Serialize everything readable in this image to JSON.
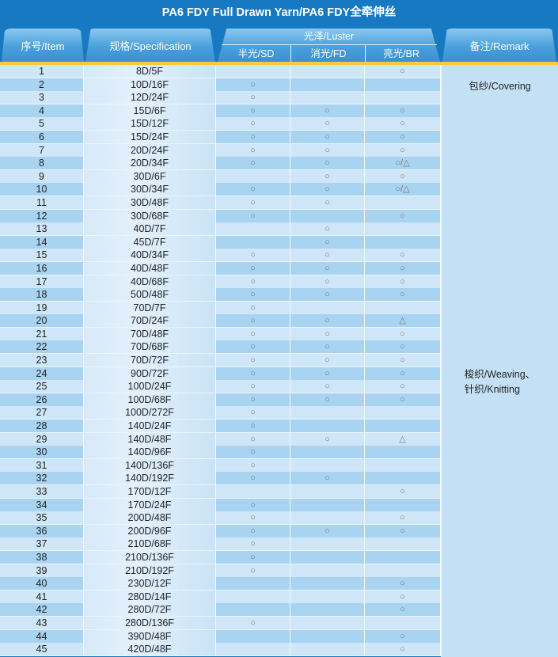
{
  "title": "PA6 FDY Full Drawn Yarn/PA6 FDY全牵伸丝",
  "headers": {
    "item": "序号/Item",
    "spec": "规格/Specification",
    "luster": "光泽/Luster",
    "sd": "半光/SD",
    "fd": "消光/FD",
    "br": "亮光/BR",
    "remark": "备注/Remark"
  },
  "colors": {
    "background": "#1679c2",
    "accent_line": "#f6c944",
    "row_light": "#cfe6f8",
    "row_dark": "#a8d3f1"
  },
  "remarks": [
    {
      "label": "包纱/Covering",
      "rows": "1-3"
    },
    {
      "label": "梭织/Weaving、\n针织/Knitting",
      "rows": "4-45"
    }
  ],
  "rows": [
    [
      "1",
      "8D/5F",
      "",
      "",
      "○"
    ],
    [
      "2",
      "10D/16F",
      "○",
      "",
      ""
    ],
    [
      "3",
      "12D/24F",
      "○",
      "",
      ""
    ],
    [
      "4",
      "15D/6F",
      "○",
      "○",
      "○"
    ],
    [
      "5",
      "15D/12F",
      "○",
      "○",
      "○"
    ],
    [
      "6",
      "15D/24F",
      "○",
      "○",
      "○"
    ],
    [
      "7",
      "20D/24F",
      "○",
      "○",
      "○"
    ],
    [
      "8",
      "20D/34F",
      "○",
      "○",
      "○/△"
    ],
    [
      "9",
      "30D/6F",
      "",
      "○",
      "○"
    ],
    [
      "10",
      "30D/34F",
      "○",
      "○",
      "○/△"
    ],
    [
      "11",
      "30D/48F",
      "○",
      "○",
      ""
    ],
    [
      "12",
      "30D/68F",
      "○",
      "",
      "○"
    ],
    [
      "13",
      "40D/7F",
      "",
      "○",
      ""
    ],
    [
      "14",
      "45D/7F",
      "",
      "○",
      ""
    ],
    [
      "15",
      "40D/34F",
      "○",
      "○",
      "○"
    ],
    [
      "16",
      "40D/48F",
      "○",
      "○",
      "○"
    ],
    [
      "17",
      "40D/68F",
      "○",
      "○",
      "○"
    ],
    [
      "18",
      "50D/48F",
      "○",
      "○",
      "○"
    ],
    [
      "19",
      "70D/7F",
      "○",
      "",
      ""
    ],
    [
      "20",
      "70D/24F",
      "○",
      "○",
      "△"
    ],
    [
      "21",
      "70D/48F",
      "○",
      "○",
      "○"
    ],
    [
      "22",
      "70D/68F",
      "○",
      "○",
      "○"
    ],
    [
      "23",
      "70D/72F",
      "○",
      "○",
      "○"
    ],
    [
      "24",
      "90D/72F",
      "○",
      "○",
      "○"
    ],
    [
      "25",
      "100D/24F",
      "○",
      "○",
      "○"
    ],
    [
      "26",
      "100D/68F",
      "○",
      "○",
      "○"
    ],
    [
      "27",
      "100D/272F",
      "○",
      "",
      ""
    ],
    [
      "28",
      "140D/24F",
      "○",
      "",
      ""
    ],
    [
      "29",
      "140D/48F",
      "○",
      "○",
      "△"
    ],
    [
      "30",
      "140D/96F",
      "○",
      "",
      ""
    ],
    [
      "31",
      "140D/136F",
      "○",
      "",
      ""
    ],
    [
      "32",
      "140D/192F",
      "○",
      "○",
      ""
    ],
    [
      "33",
      "170D/12F",
      "",
      "",
      "○"
    ],
    [
      "34",
      "170D/24F",
      "○",
      "",
      ""
    ],
    [
      "35",
      "200D/48F",
      "○",
      "",
      "○"
    ],
    [
      "36",
      "200D/96F",
      "○",
      "○",
      "○"
    ],
    [
      "37",
      "210D/68F",
      "○",
      "",
      ""
    ],
    [
      "38",
      "210D/136F",
      "○",
      "",
      ""
    ],
    [
      "39",
      "210D/192F",
      "○",
      "",
      ""
    ],
    [
      "40",
      "230D/12F",
      "",
      "",
      "○"
    ],
    [
      "41",
      "280D/14F",
      "",
      "",
      "○"
    ],
    [
      "42",
      "280D/72F",
      "",
      "",
      "○"
    ],
    [
      "43",
      "280D/136F",
      "○",
      "",
      ""
    ],
    [
      "44",
      "390D/48F",
      "",
      "",
      "○"
    ],
    [
      "45",
      "420D/48F",
      "",
      "",
      "○"
    ]
  ]
}
